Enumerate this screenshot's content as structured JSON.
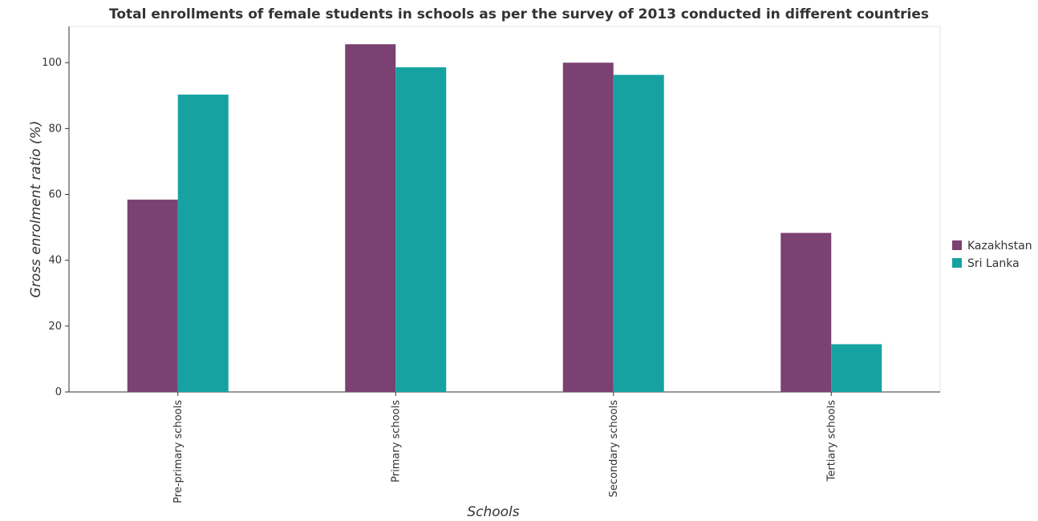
{
  "title": "Total enrollments of female students in schools as per the survey of 2013 conducted in different countries",
  "chart_data": {
    "type": "bar",
    "title": "Total enrollments of female students in schools as per the survey of 2013 conducted in different countries",
    "xlabel": "Schools",
    "ylabel": "Gross enrolment ratio (%)",
    "categories": [
      "Pre-primary schools",
      "Primary schools",
      "Secondary schools",
      "Tertiary schools"
    ],
    "ylim": [
      0,
      111
    ],
    "yticks": [
      0,
      20,
      40,
      60,
      80,
      100
    ],
    "series": [
      {
        "name": "Kazakhstan",
        "color": "#7b4173",
        "values": [
          58.4,
          105.6,
          100.0,
          48.3
        ]
      },
      {
        "name": "Sri Lanka",
        "color": "#17a2a2",
        "values": [
          90.3,
          98.6,
          96.3,
          14.5
        ]
      }
    ],
    "legend_position": "right",
    "grid": false
  }
}
